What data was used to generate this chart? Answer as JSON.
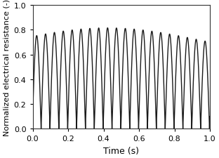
{
  "title": "",
  "xlabel": "Time (s)",
  "ylabel": "Normalized electrical resistance (-)",
  "xlim": [
    0,
    1.0
  ],
  "ylim": [
    0.0,
    1.0
  ],
  "xticks": [
    0,
    0.2,
    0.4,
    0.6,
    0.8,
    1.0
  ],
  "yticks": [
    0.0,
    0.2,
    0.4,
    0.6,
    0.8,
    1.0
  ],
  "line_color": "#1a1a1a",
  "line_width": 1.0,
  "background_color": "#ffffff",
  "figsize": [
    3.12,
    2.26
  ],
  "dpi": 100
}
